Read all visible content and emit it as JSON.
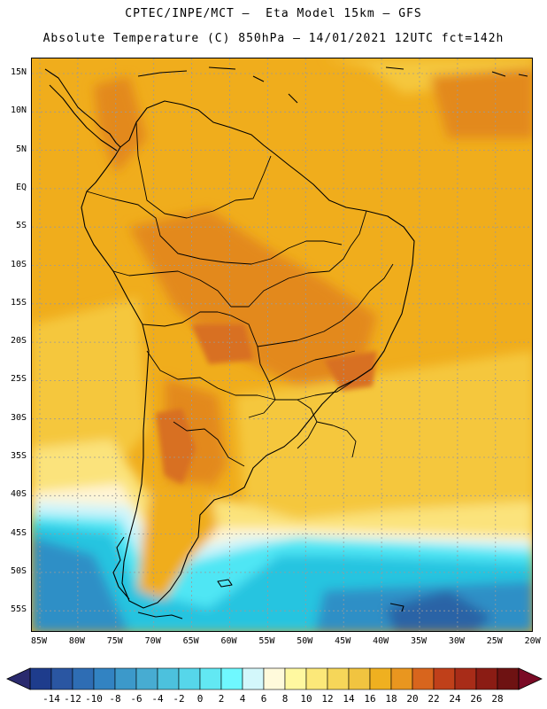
{
  "header": {
    "title_line1": "CPTEC/INPE/MCT –  Eta Model 15km – GFS",
    "title_line2": "Absolute Temperature (C) 850hPa – 14/01/2021 12UTC fct=142h"
  },
  "map": {
    "lat_labels": [
      "15N",
      "10N",
      "5N",
      "EQ",
      "5S",
      "10S",
      "15S",
      "20S",
      "25S",
      "30S",
      "35S",
      "40S",
      "45S",
      "50S",
      "55S"
    ],
    "lon_labels": [
      "85W",
      "80W",
      "75W",
      "70W",
      "65W",
      "60W",
      "55W",
      "50W",
      "45W",
      "40W",
      "35W",
      "30W",
      "25W",
      "20W"
    ],
    "colors": {
      "land_outline": "#000000",
      "grid_line": "#9a9a9a",
      "warm_base": "#f0ad1c",
      "hot": "#e3891e",
      "hotter": "#d86f22",
      "mild": "#f5c73c",
      "cool_yellow": "#fbe37c",
      "pale": "#fff5d6",
      "ice": "#cdf4fb",
      "cyan": "#4fe6f4",
      "sky": "#28c4e0",
      "blue": "#2f8fc6",
      "deep_blue": "#2a64a6"
    }
  },
  "colorbar": {
    "labels": [
      "-14",
      "-12",
      "-10",
      "-8",
      "-6",
      "-4",
      "-2",
      "0",
      "2",
      "4",
      "6",
      "8",
      "10",
      "12",
      "14",
      "16",
      "18",
      "20",
      "22",
      "24",
      "26",
      "28"
    ],
    "colors": [
      "#1e3c8c",
      "#2a56a2",
      "#2e6db4",
      "#3283c2",
      "#3c99ca",
      "#47acd2",
      "#4cc1dd",
      "#56d6ea",
      "#62e8f3",
      "#6ff8ff",
      "#d3f7fb",
      "#fffadb",
      "#fff8a0",
      "#fce879",
      "#f6d659",
      "#f1c440",
      "#efb020",
      "#e9961f",
      "#d8651d",
      "#c0401a",
      "#a82c18",
      "#8b1c14",
      "#6e1212"
    ],
    "low_arrow_color": "#2a2a6e",
    "high_arrow_color": "#7a0a25"
  }
}
